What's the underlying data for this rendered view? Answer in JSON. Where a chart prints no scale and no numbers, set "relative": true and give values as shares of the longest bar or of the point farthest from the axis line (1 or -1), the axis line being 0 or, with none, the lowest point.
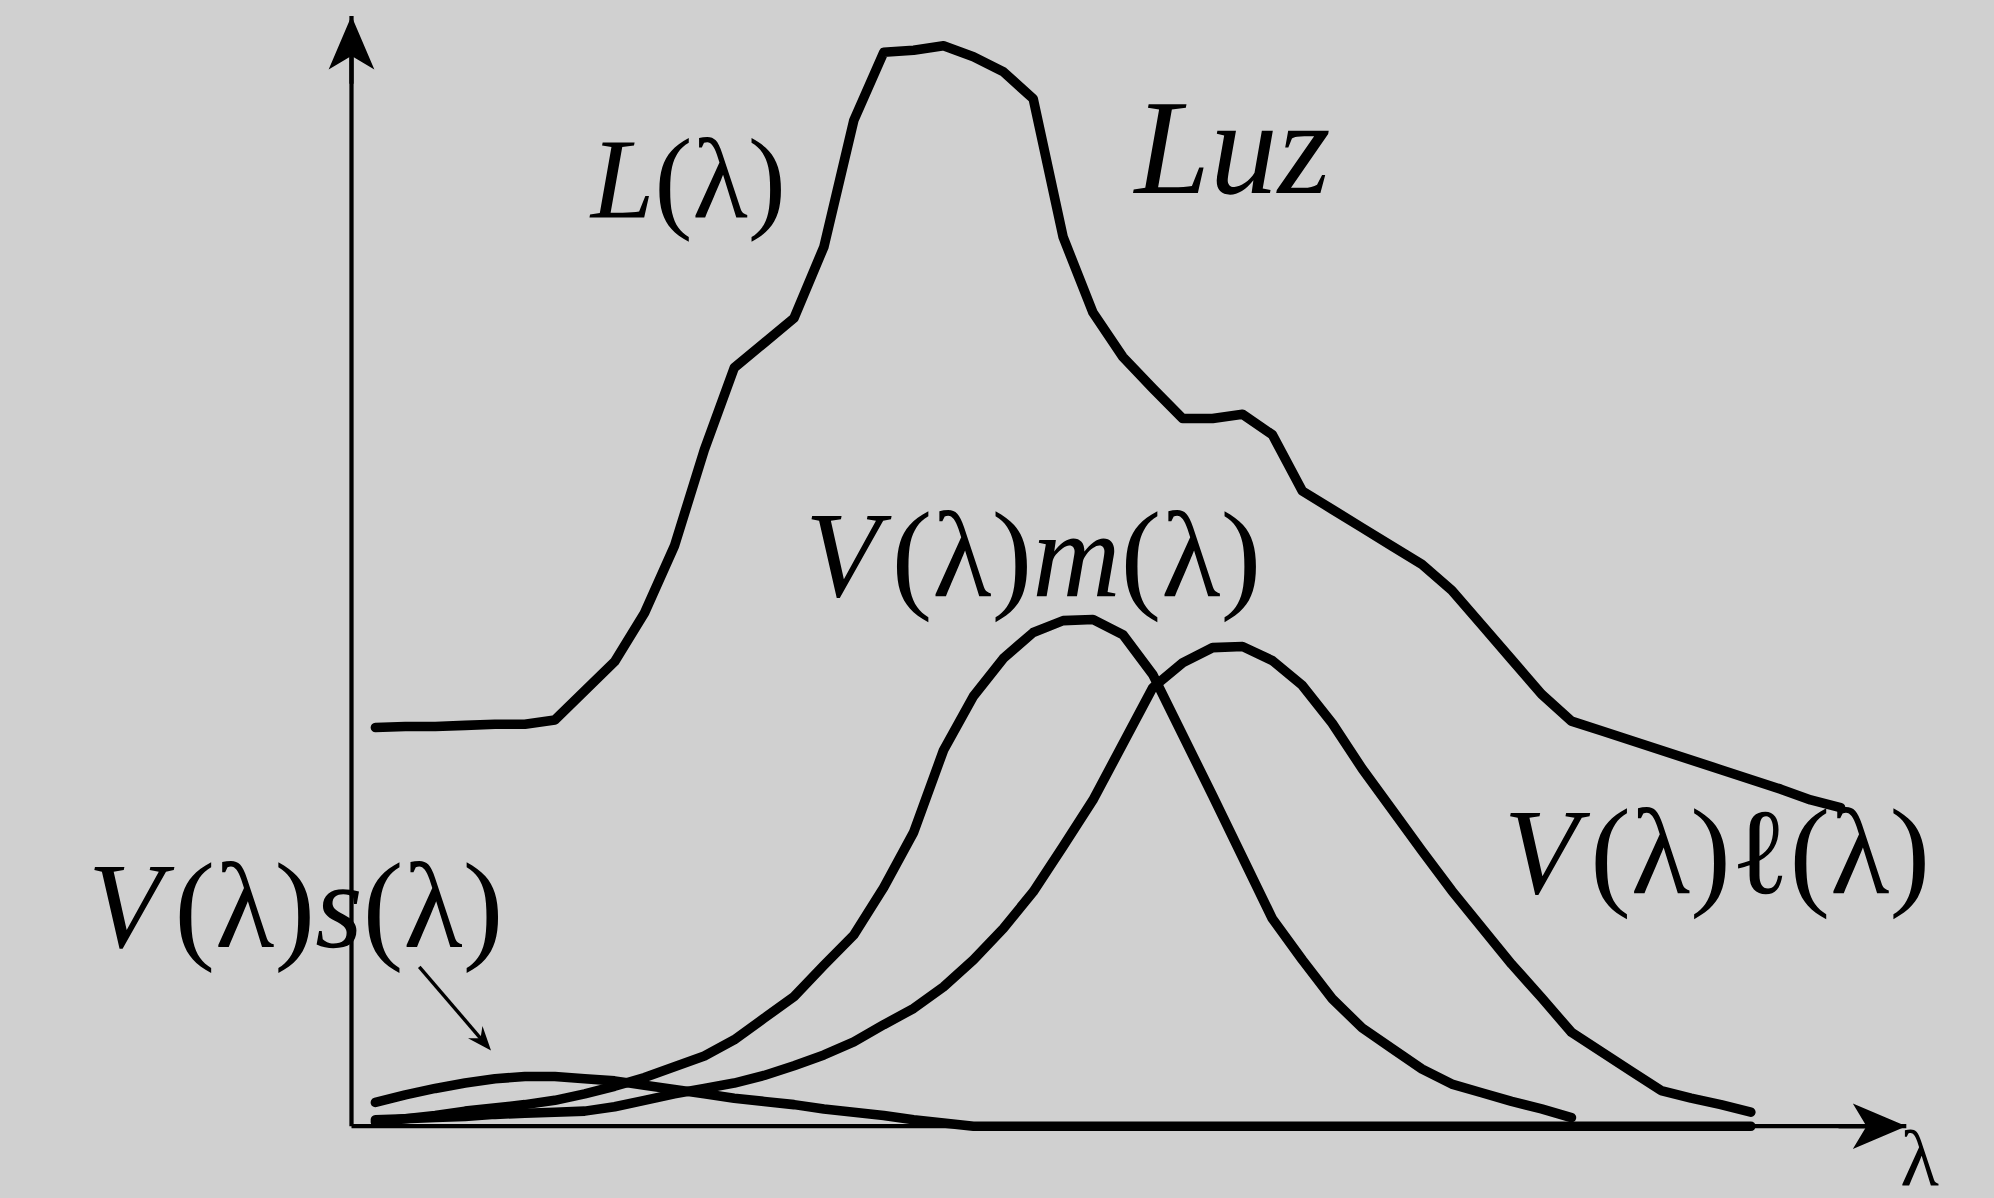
{
  "chart_data": {
    "type": "line",
    "relative": true,
    "xlabel": "λ",
    "annotations": [
      "Luz"
    ],
    "categories": [
      null,
      null,
      null,
      null,
      null,
      null,
      null,
      null,
      null,
      null,
      null,
      null,
      null,
      null,
      null,
      null,
      null,
      null,
      null,
      null,
      null,
      null,
      null,
      null,
      null,
      null,
      null,
      null,
      null,
      null,
      null,
      null,
      null,
      null,
      null,
      null,
      null,
      null,
      null,
      null,
      null,
      null,
      null,
      null,
      null,
      null,
      null,
      null,
      null,
      null
    ],
    "series": [
      {
        "name": "*L*(λ)",
        "color": "#000000",
        "values": [
          0.369,
          0.37,
          0.37,
          0.371,
          0.372,
          0.372,
          0.376,
          0.403,
          0.43,
          0.475,
          0.537,
          0.626,
          0.702,
          0.725,
          0.748,
          0.814,
          0.931,
          0.994,
          0.996,
          1,
          0.99,
          0.976,
          0.951,
          0.823,
          0.753,
          0.712,
          0.683,
          0.655,
          0.655,
          0.659,
          0.64,
          0.588,
          0.571,
          0.554,
          0.537,
          0.52,
          0.496,
          0.464,
          0.432,
          0.4,
          0.375,
          0.366,
          0.357,
          0.348,
          0.339,
          0.33,
          0.321,
          0.312,
          0.302,
          0.295
        ]
      },
      {
        "name": "*V*(λ)*m*(λ)",
        "color": "#000000",
        "values": [
          0.004,
          0.007,
          0.01,
          0.014,
          0.017,
          0.02,
          0.024,
          0.03,
          0.037,
          0.045,
          0.055,
          0.065,
          0.08,
          0.1,
          0.12,
          0.149,
          0.177,
          0.221,
          0.272,
          0.348,
          0.398,
          0.433,
          0.457,
          0.468,
          0.469,
          0.455,
          0.418,
          0.362,
          0.306,
          0.249,
          0.192,
          0.154,
          0.118,
          0.091,
          0.072,
          0.053,
          0.039,
          0.031,
          0.023,
          0.016,
          0.008,
          null,
          null,
          null,
          null,
          null,
          null,
          null,
          null,
          null
        ]
      },
      {
        "name": "*V*(λ)ℓ(λ)",
        "color": "#000000",
        "values": [
          0.006,
          0.007,
          0.008,
          0.009,
          0.011,
          0.012,
          0.013,
          0.014,
          0.018,
          0.024,
          0.03,
          0.035,
          0.04,
          0.047,
          0.056,
          0.066,
          0.078,
          0.094,
          0.109,
          0.129,
          0.154,
          0.183,
          0.217,
          0.259,
          0.302,
          0.354,
          0.406,
          0.429,
          0.443,
          0.444,
          0.431,
          0.408,
          0.373,
          0.331,
          0.293,
          0.255,
          0.218,
          0.184,
          0.15,
          0.119,
          0.087,
          0.069,
          0.051,
          0.033,
          0.026,
          0.02,
          0.013,
          null,
          null,
          null
        ]
      },
      {
        "name": "*V*(λ)*s*(λ)",
        "color": "#000000",
        "values": [
          0.022,
          0.029,
          0.035,
          0.04,
          0.044,
          0.046,
          0.046,
          0.044,
          0.042,
          0.038,
          0.034,
          0.03,
          0.026,
          0.023,
          0.02,
          0.016,
          0.013,
          0.01,
          0.006,
          0.003,
          0,
          0,
          0,
          0,
          0,
          0,
          0,
          0,
          0,
          0,
          0,
          0,
          0,
          0,
          0,
          0,
          0,
          0,
          0,
          0,
          0,
          0,
          0,
          0,
          0,
          0,
          0,
          null,
          null,
          null
        ]
      }
    ]
  }
}
